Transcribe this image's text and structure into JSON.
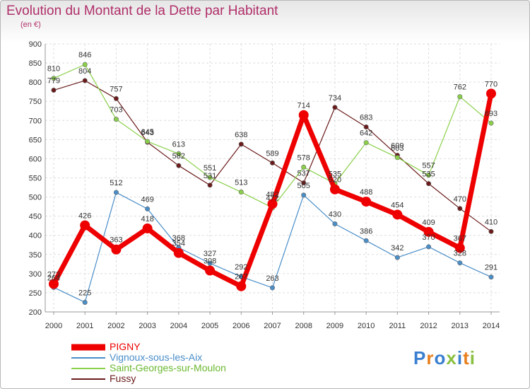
{
  "chart_data": {
    "type": "line",
    "title": "Evolution du Montant de la Dette par Habitant",
    "subtitle": "(en €)",
    "xlabel": "",
    "ylabel": "",
    "categories": [
      "2000",
      "2001",
      "2002",
      "2003",
      "2004",
      "2005",
      "2006",
      "2007",
      "2008",
      "2009",
      "2010",
      "2011",
      "2012",
      "2013",
      "2014"
    ],
    "ylim": [
      200,
      900
    ],
    "yticks": [
      200,
      250,
      300,
      350,
      400,
      450,
      500,
      550,
      600,
      650,
      700,
      750,
      800,
      850,
      900
    ],
    "grid": true,
    "legend_position": "bottom-left",
    "series": [
      {
        "name": "PIGNY",
        "color": "#ee0000",
        "values": [
          273,
          426,
          363,
          418,
          354,
          308,
          267,
          482,
          714,
          520,
          488,
          454,
          409,
          367,
          770
        ]
      },
      {
        "name": "Vignoux-sous-les-Aix",
        "color": "#4a8ec8",
        "values": [
          264,
          225,
          512,
          469,
          368,
          327,
          292,
          263,
          505,
          430,
          386,
          342,
          370,
          328,
          291
        ]
      },
      {
        "name": "Saint-Georges-sur-Moulon",
        "color": "#8ad04a",
        "values": [
          810,
          846,
          703,
          645,
          613,
          551,
          513,
          472,
          578,
          535,
          642,
          603,
          557,
          762,
          693
        ]
      },
      {
        "name": "Fussy",
        "color": "#6a1a1a",
        "values": [
          779,
          804,
          757,
          643,
          582,
          531,
          638,
          589,
          537,
          734,
          683,
          609,
          535,
          470,
          410
        ]
      }
    ]
  },
  "brand": {
    "logo_text": "Proxiti",
    "colors": [
      "#3a7fd0",
      "#e88020",
      "#3a7fd0",
      "#8ac040",
      "#3a7fd0",
      "#e88020",
      "#8ac040"
    ]
  }
}
